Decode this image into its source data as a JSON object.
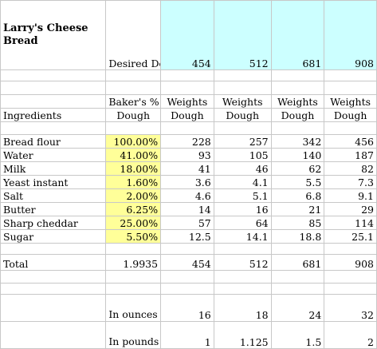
{
  "title": "Larry's Cheese Bread",
  "desired_label": "Desired Dough Weight in grams -->",
  "desired_weights": [
    "454",
    "512",
    "681",
    "908"
  ],
  "header_top": [
    "Baker's %",
    "Weights",
    "Weights",
    "Weights",
    "Weights"
  ],
  "header_bottom": [
    "Dough",
    "Dough",
    "Dough",
    "Dough",
    "Dough"
  ],
  "ingredients_label": "Ingredients",
  "ingredients": [
    {
      "name": "Bread flour",
      "pct": "100.00%",
      "w": [
        "228",
        "257",
        "342",
        "456"
      ]
    },
    {
      "name": "Water",
      "pct": "41.00%",
      "w": [
        "93",
        "105",
        "140",
        "187"
      ]
    },
    {
      "name": "Milk",
      "pct": "18.00%",
      "w": [
        "41",
        "46",
        "62",
        "82"
      ]
    },
    {
      "name": "Yeast instant",
      "pct": "1.60%",
      "w": [
        "3.6",
        "4.1",
        "5.5",
        "7.3"
      ]
    },
    {
      "name": "Salt",
      "pct": "2.00%",
      "w": [
        "4.6",
        "5.1",
        "6.8",
        "9.1"
      ]
    },
    {
      "name": "Butter",
      "pct": "6.25%",
      "w": [
        "14",
        "16",
        "21",
        "29"
      ]
    },
    {
      "name": "Sharp cheddar",
      "pct": "25.00%",
      "w": [
        "57",
        "64",
        "85",
        "114"
      ]
    },
    {
      "name": "Sugar",
      "pct": "5.50%",
      "w": [
        "12.5",
        "14.1",
        "18.8",
        "25.1"
      ]
    }
  ],
  "total": {
    "label": "Total",
    "pct": "1.9935",
    "w": [
      "454",
      "512",
      "681",
      "908"
    ]
  },
  "ounces": {
    "label": "In ounces",
    "w": [
      "16",
      "18",
      "24",
      "32"
    ]
  },
  "pounds": {
    "label": "In pounds",
    "w": [
      "1",
      "1.125",
      "1.5",
      "2"
    ]
  }
}
